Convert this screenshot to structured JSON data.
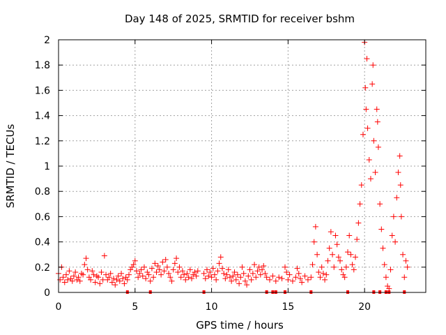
{
  "chart_data": {
    "type": "scatter",
    "title": "Day 148 of 2025, SRMTID for receiver bshm",
    "xlabel": "GPS time / hours",
    "ylabel": "SRMTID / TECUs",
    "xlim": [
      0,
      24
    ],
    "ylim": [
      0,
      2
    ],
    "xticks": [
      "0",
      "5",
      "10",
      "15",
      "20"
    ],
    "yticks": [
      "0",
      "0.2",
      "0.4",
      "0.6",
      "0.8",
      "1",
      "1.2",
      "1.4",
      "1.6",
      "1.8",
      "2"
    ],
    "grid": true,
    "marker": "+",
    "color": "#ff0000",
    "series": [
      {
        "name": "SRMTID",
        "points": [
          [
            0.0,
            0.15
          ],
          [
            0.1,
            0.1
          ],
          [
            0.2,
            0.2
          ],
          [
            0.3,
            0.12
          ],
          [
            0.4,
            0.08
          ],
          [
            0.5,
            0.14
          ],
          [
            0.6,
            0.1
          ],
          [
            0.7,
            0.17
          ],
          [
            0.8,
            0.11
          ],
          [
            0.9,
            0.09
          ],
          [
            1.0,
            0.13
          ],
          [
            1.1,
            0.16
          ],
          [
            1.2,
            0.1
          ],
          [
            1.3,
            0.12
          ],
          [
            1.4,
            0.09
          ],
          [
            1.5,
            0.15
          ],
          [
            1.6,
            0.14
          ],
          [
            1.7,
            0.22
          ],
          [
            1.8,
            0.27
          ],
          [
            1.9,
            0.18
          ],
          [
            2.0,
            0.12
          ],
          [
            2.1,
            0.1
          ],
          [
            2.2,
            0.17
          ],
          [
            2.3,
            0.14
          ],
          [
            2.4,
            0.08
          ],
          [
            2.5,
            0.13
          ],
          [
            2.6,
            0.12
          ],
          [
            2.7,
            0.07
          ],
          [
            2.8,
            0.16
          ],
          [
            2.9,
            0.1
          ],
          [
            3.0,
            0.29
          ],
          [
            3.1,
            0.14
          ],
          [
            3.2,
            0.1
          ],
          [
            3.3,
            0.12
          ],
          [
            3.4,
            0.15
          ],
          [
            3.5,
            0.08
          ],
          [
            3.6,
            0.11
          ],
          [
            3.7,
            0.06
          ],
          [
            3.8,
            0.1
          ],
          [
            3.9,
            0.13
          ],
          [
            4.0,
            0.09
          ],
          [
            4.1,
            0.15
          ],
          [
            4.2,
            0.11
          ],
          [
            4.3,
            0.07
          ],
          [
            4.4,
            0.12
          ],
          [
            4.5,
            0.1
          ],
          [
            4.6,
            0.14
          ],
          [
            4.7,
            0.18
          ],
          [
            4.8,
            0.2
          ],
          [
            4.9,
            0.22
          ],
          [
            5.0,
            0.25
          ],
          [
            5.1,
            0.17
          ],
          [
            5.2,
            0.12
          ],
          [
            5.3,
            0.15
          ],
          [
            5.4,
            0.18
          ],
          [
            5.5,
            0.13
          ],
          [
            5.6,
            0.2
          ],
          [
            5.7,
            0.11
          ],
          [
            5.8,
            0.16
          ],
          [
            5.9,
            0.14
          ],
          [
            6.0,
            0.09
          ],
          [
            6.1,
            0.19
          ],
          [
            6.2,
            0.12
          ],
          [
            6.3,
            0.23
          ],
          [
            6.4,
            0.16
          ],
          [
            6.5,
            0.21
          ],
          [
            6.6,
            0.18
          ],
          [
            6.7,
            0.14
          ],
          [
            6.8,
            0.24
          ],
          [
            6.9,
            0.17
          ],
          [
            7.0,
            0.26
          ],
          [
            7.1,
            0.2
          ],
          [
            7.2,
            0.15
          ],
          [
            7.3,
            0.12
          ],
          [
            7.4,
            0.09
          ],
          [
            7.5,
            0.18
          ],
          [
            7.6,
            0.23
          ],
          [
            7.7,
            0.27
          ],
          [
            7.8,
            0.16
          ],
          [
            7.9,
            0.2
          ],
          [
            8.0,
            0.12
          ],
          [
            8.1,
            0.17
          ],
          [
            8.2,
            0.14
          ],
          [
            8.3,
            0.1
          ],
          [
            8.4,
            0.15
          ],
          [
            8.5,
            0.12
          ],
          [
            8.6,
            0.18
          ],
          [
            8.7,
            0.11
          ],
          [
            8.8,
            0.14
          ],
          [
            8.9,
            0.16
          ],
          [
            9.0,
            0.13
          ],
          [
            9.1,
            0.17
          ],
          [
            9.5,
            0.15
          ],
          [
            9.6,
            0.11
          ],
          [
            9.7,
            0.18
          ],
          [
            9.8,
            0.13
          ],
          [
            9.9,
            0.16
          ],
          [
            10.0,
            0.12
          ],
          [
            10.1,
            0.19
          ],
          [
            10.2,
            0.14
          ],
          [
            10.3,
            0.1
          ],
          [
            10.4,
            0.17
          ],
          [
            10.5,
            0.23
          ],
          [
            10.6,
            0.28
          ],
          [
            10.7,
            0.19
          ],
          [
            10.8,
            0.15
          ],
          [
            10.9,
            0.11
          ],
          [
            11.0,
            0.14
          ],
          [
            11.1,
            0.18
          ],
          [
            11.2,
            0.12
          ],
          [
            11.3,
            0.09
          ],
          [
            11.4,
            0.13
          ],
          [
            11.5,
            0.16
          ],
          [
            11.6,
            0.1
          ],
          [
            11.7,
            0.14
          ],
          [
            11.8,
            0.07
          ],
          [
            11.9,
            0.12
          ],
          [
            12.0,
            0.2
          ],
          [
            12.1,
            0.15
          ],
          [
            12.2,
            0.09
          ],
          [
            12.3,
            0.06
          ],
          [
            12.4,
            0.13
          ],
          [
            12.5,
            0.18
          ],
          [
            12.6,
            0.1
          ],
          [
            12.7,
            0.15
          ],
          [
            12.8,
            0.22
          ],
          [
            12.9,
            0.12
          ],
          [
            13.0,
            0.17
          ],
          [
            13.1,
            0.2
          ],
          [
            13.2,
            0.14
          ],
          [
            13.3,
            0.18
          ],
          [
            13.4,
            0.21
          ],
          [
            13.5,
            0.15
          ],
          [
            13.6,
            0.12
          ],
          [
            13.8,
            0.1
          ],
          [
            14.0,
            0.13
          ],
          [
            14.2,
            0.09
          ],
          [
            14.4,
            0.12
          ],
          [
            14.6,
            0.11
          ],
          [
            14.8,
            0.2
          ],
          [
            14.9,
            0.16
          ],
          [
            15.0,
            0.1
          ],
          [
            15.1,
            0.14
          ],
          [
            15.3,
            0.09
          ],
          [
            15.5,
            0.12
          ],
          [
            15.6,
            0.19
          ],
          [
            15.7,
            0.15
          ],
          [
            15.8,
            0.11
          ],
          [
            15.9,
            0.08
          ],
          [
            16.1,
            0.13
          ],
          [
            16.3,
            0.1
          ],
          [
            16.5,
            0.12
          ],
          [
            16.6,
            0.22
          ],
          [
            16.7,
            0.4
          ],
          [
            16.8,
            0.52
          ],
          [
            16.9,
            0.3
          ],
          [
            17.0,
            0.16
          ],
          [
            17.1,
            0.12
          ],
          [
            17.2,
            0.2
          ],
          [
            17.3,
            0.15
          ],
          [
            17.4,
            0.1
          ],
          [
            17.5,
            0.14
          ],
          [
            17.6,
            0.25
          ],
          [
            17.7,
            0.35
          ],
          [
            17.8,
            0.48
          ],
          [
            17.9,
            0.3
          ],
          [
            18.0,
            0.2
          ],
          [
            18.1,
            0.45
          ],
          [
            18.2,
            0.38
          ],
          [
            18.3,
            0.28
          ],
          [
            18.4,
            0.25
          ],
          [
            18.5,
            0.18
          ],
          [
            18.6,
            0.14
          ],
          [
            18.7,
            0.12
          ],
          [
            18.8,
            0.2
          ],
          [
            18.9,
            0.32
          ],
          [
            19.0,
            0.45
          ],
          [
            19.1,
            0.3
          ],
          [
            19.2,
            0.22
          ],
          [
            19.3,
            0.18
          ],
          [
            19.4,
            0.28
          ],
          [
            19.5,
            0.42
          ],
          [
            19.6,
            0.55
          ],
          [
            19.7,
            0.7
          ],
          [
            19.8,
            0.85
          ],
          [
            19.9,
            1.25
          ],
          [
            20.0,
            1.98
          ],
          [
            20.05,
            1.62
          ],
          [
            20.1,
            1.45
          ],
          [
            20.15,
            1.85
          ],
          [
            20.2,
            1.3
          ],
          [
            20.3,
            1.05
          ],
          [
            20.4,
            0.9
          ],
          [
            20.5,
            1.65
          ],
          [
            20.55,
            1.8
          ],
          [
            20.6,
            1.2
          ],
          [
            20.7,
            0.95
          ],
          [
            20.8,
            1.45
          ],
          [
            20.85,
            1.35
          ],
          [
            20.9,
            1.15
          ],
          [
            21.0,
            0.7
          ],
          [
            21.1,
            0.5
          ],
          [
            21.2,
            0.35
          ],
          [
            21.3,
            0.22
          ],
          [
            21.4,
            0.12
          ],
          [
            21.5,
            0.05
          ],
          [
            21.6,
            0.03
          ],
          [
            21.7,
            0.18
          ],
          [
            21.8,
            0.45
          ],
          [
            21.9,
            0.6
          ],
          [
            22.0,
            0.4
          ],
          [
            22.1,
            0.75
          ],
          [
            22.2,
            0.95
          ],
          [
            22.3,
            1.08
          ],
          [
            22.35,
            0.85
          ],
          [
            22.4,
            0.6
          ],
          [
            22.5,
            0.3
          ],
          [
            22.6,
            0.12
          ],
          [
            22.7,
            0.25
          ],
          [
            22.8,
            0.2
          ]
        ]
      }
    ],
    "gap_markers_x": [
      4.5,
      6.0,
      9.5,
      13.6,
      14.0,
      14.2,
      14.8,
      16.5,
      18.9,
      20.6,
      21.0,
      21.4,
      21.6,
      22.6
    ]
  }
}
